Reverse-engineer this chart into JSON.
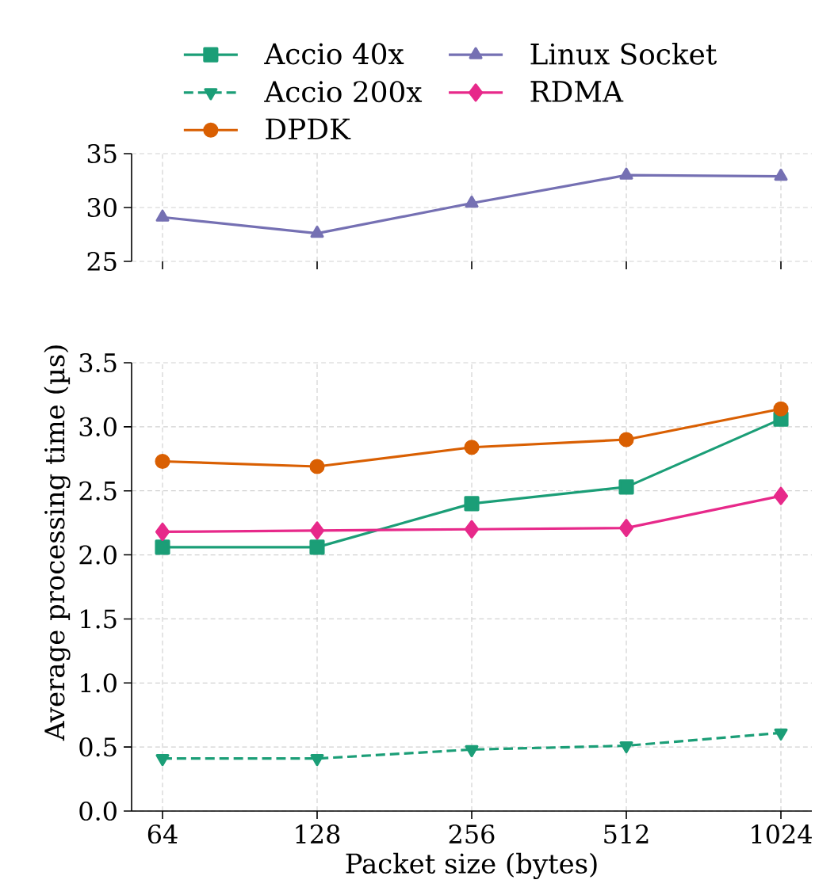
{
  "chart_data": [
    {
      "type": "line",
      "categories": [
        "64",
        "128",
        "256",
        "512",
        "1024"
      ],
      "ylim": [
        25,
        35
      ],
      "yticks": [
        25,
        30,
        35
      ],
      "grid": true,
      "tick_labels": "y",
      "legend": "top",
      "series": [
        {
          "name": "Accio 40x",
          "color": "#1b9e77",
          "marker": "square",
          "line_style": "solid",
          "values": [
            null,
            null,
            null,
            null,
            null
          ]
        },
        {
          "name": "Accio 200x",
          "color": "#1b9e77",
          "marker": "triangle_down",
          "line_style": "dashed",
          "values": [
            null,
            null,
            null,
            null,
            null
          ]
        },
        {
          "name": "DPDK",
          "color": "#d95f02",
          "marker": "circle",
          "line_style": "solid",
          "values": [
            null,
            null,
            null,
            null,
            null
          ]
        },
        {
          "name": "Linux Socket",
          "color": "#7570b3",
          "marker": "triangle",
          "line_style": "solid",
          "values": [
            29.1,
            27.6,
            30.4,
            33.0,
            32.9
          ]
        },
        {
          "name": "RDMA",
          "color": "#e7298a",
          "marker": "diamond",
          "line_style": "solid",
          "values": [
            null,
            null,
            null,
            null,
            null
          ]
        }
      ]
    },
    {
      "type": "line",
      "categories": [
        "64",
        "128",
        "256",
        "512",
        "1024"
      ],
      "xlabel": "Packet size (bytes)",
      "ylabel": "Average processing time (µs)",
      "ylim": [
        0,
        3.5
      ],
      "yticks": [
        {
          "value": 0,
          "label": "0.0"
        },
        0.5,
        {
          "value": 1,
          "label": "1.0"
        },
        1.5,
        {
          "value": 2,
          "label": "2.0"
        },
        2.5,
        {
          "value": 3,
          "label": "3.0"
        },
        3.5
      ],
      "grid": true,
      "series": [
        {
          "color": "#1b9e77",
          "marker": "square",
          "line_style": "solid",
          "values": [
            2.06,
            2.06,
            2.4,
            2.53,
            3.06
          ]
        },
        {
          "color": "#1b9e77",
          "marker": "triangle_down",
          "line_style": "dashed",
          "values": [
            0.41,
            0.41,
            0.48,
            0.51,
            0.61
          ]
        },
        {
          "color": "#d95f02",
          "marker": "circle",
          "line_style": "solid",
          "values": [
            2.73,
            2.69,
            2.84,
            2.9,
            3.14
          ]
        },
        {
          "color": "#e7298a",
          "marker": "diamond",
          "line_style": "solid",
          "values": [
            2.18,
            2.19,
            2.2,
            2.21,
            2.46
          ]
        }
      ]
    }
  ]
}
